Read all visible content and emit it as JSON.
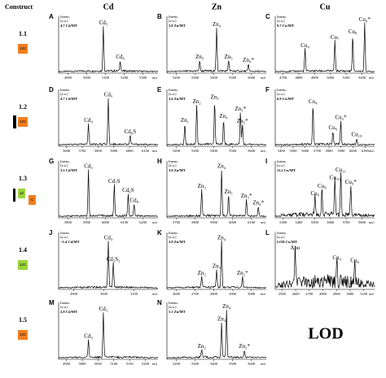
{
  "columns": {
    "construct": "Construct",
    "cd": "Cd",
    "zn": "Zn",
    "cu": "Cu"
  },
  "y_axis_label": [
    "Intens.",
    "[a.u.]"
  ],
  "x_unit": "m/z",
  "constructs": [
    {
      "label": "1.1",
      "icons": [
        {
          "text": "12C",
          "color": "#f07f1f"
        }
      ]
    },
    {
      "label": "1.2",
      "icons": [
        {
          "text": "12C",
          "color": "#f07f1f"
        }
      ]
    },
    {
      "label": "1.3",
      "icons": [
        {
          "text": "1Z",
          "color": "#9cd43a"
        },
        {
          "text": "C",
          "color": "#f07f1f"
        }
      ]
    },
    {
      "label": "1.4",
      "icons": [
        {
          "text": "12C",
          "color": "#9cd43a"
        }
      ]
    },
    {
      "label": "1.5",
      "icons": [
        {
          "text": "12C",
          "color": "#f07f1f"
        }
      ]
    }
  ],
  "panels": [
    {
      "letter": "A",
      "info": "4.7 Cd/MT",
      "xticks": [
        "4900",
        "5000",
        "5100",
        "5200",
        "5300"
      ],
      "peaks": [
        "Cd₅",
        "Cd₆"
      ]
    },
    {
      "letter": "B",
      "info": "3.8 Zn/MT",
      "xticks": [
        "5200",
        "5300",
        "5400",
        "5500",
        "5600"
      ],
      "peaks": [
        "Zn₄",
        "Zn₃",
        "Zn₅",
        "Zn₄*"
      ]
    },
    {
      "letter": "C",
      "info": "9.7 Cu/MT",
      "xticks": [
        "4700",
        "4800",
        "4900",
        "5000",
        "5100",
        "5200"
      ],
      "peaks": [
        "Cu₄",
        "Cu₇",
        "Cu₈",
        "Cu₉*"
      ]
    },
    {
      "letter": "D",
      "info": "4.7 Cd/MT",
      "xticks": [
        "5600",
        "5700",
        "5800",
        "5900",
        "6000",
        "6100"
      ],
      "peaks": [
        "Cd₄",
        "Cd₅",
        "Cd₆S"
      ]
    },
    {
      "letter": "E",
      "info": "3.6 Zn/MT",
      "xticks": [
        "5200",
        "5300",
        "5400",
        "5500",
        "5600"
      ],
      "peaks": [
        "Zn₁",
        "Zn₂",
        "Zn₃",
        "Zn₃*",
        "Zn₄",
        "Zn₅*"
      ]
    },
    {
      "letter": "F",
      "info": "6.9 Cu/MT",
      "xticks": [
        "5400",
        "5500",
        "5600",
        "5700",
        "5800",
        "5900",
        "6000",
        "6100"
      ],
      "peaks": [
        "Cu₄",
        "Cu₅*",
        "Cu₆",
        "Cu₁₀"
      ]
    },
    {
      "letter": "G",
      "info": "3.5 Cd/MT",
      "xticks": [
        "5800",
        "5900",
        "6000",
        "6100",
        "6200"
      ],
      "peaks": [
        "Cd₅",
        "Cd₇S",
        "Cd₆S",
        "Cd₈"
      ]
    },
    {
      "letter": "H",
      "info": "3.8 Zn/MT",
      "xticks": [
        "5700",
        "5800",
        "5900",
        "6000",
        "6100"
      ],
      "peaks": [
        "Zn₄",
        "Zn₃",
        "Zn₅",
        "Zn₃*",
        "Zn₄*"
      ]
    },
    {
      "letter": "I",
      "info": "11.2 Cu/MT",
      "xticks": [
        "5300",
        "5400",
        "5500",
        "5600",
        "5700",
        "5800"
      ],
      "peaks": [
        "Cu₁₁",
        "Cu₁₀",
        "Cu₉*",
        "Cu₈",
        "Cu₆"
      ]
    },
    {
      "letter": "J",
      "info": ">1.4 Cd/MT",
      "xticks": [
        "2900",
        "3000",
        "3100"
      ],
      "peaks": [
        "Cd₃",
        "Cd₃S₂"
      ]
    },
    {
      "letter": "K",
      "info": "2.8 Zn/MT",
      "xticks": [
        "2600",
        "2700",
        "2800",
        "2900",
        "3000"
      ],
      "peaks": [
        "Zn₄",
        "Zn₂",
        "Zn₃",
        "Zn₂*"
      ]
    },
    {
      "letter": "L",
      "info": "LOD Cu/MT",
      "xticks": [
        "2500",
        "2600",
        "2700",
        "2800",
        "2900",
        "3000",
        "3100"
      ],
      "peaks": [
        "Apo",
        "Cu₄",
        "Cu₆"
      ]
    },
    {
      "letter": "M",
      "info": "2.8 Cd/MT",
      "xticks": [
        "4950",
        "5000",
        "5050",
        "5100",
        "5150",
        "5200"
      ],
      "peaks": [
        "Cd₃",
        "Cd₂"
      ]
    },
    {
      "letter": "N",
      "info": "3.3 Zn/MT",
      "xticks": [
        "5200",
        "5300",
        "5400",
        "5500",
        "5600"
      ],
      "peaks": [
        "Zn₄",
        "Zn₃",
        "Zn₂",
        "Zn₂*"
      ]
    }
  ],
  "lod": "LOD"
}
